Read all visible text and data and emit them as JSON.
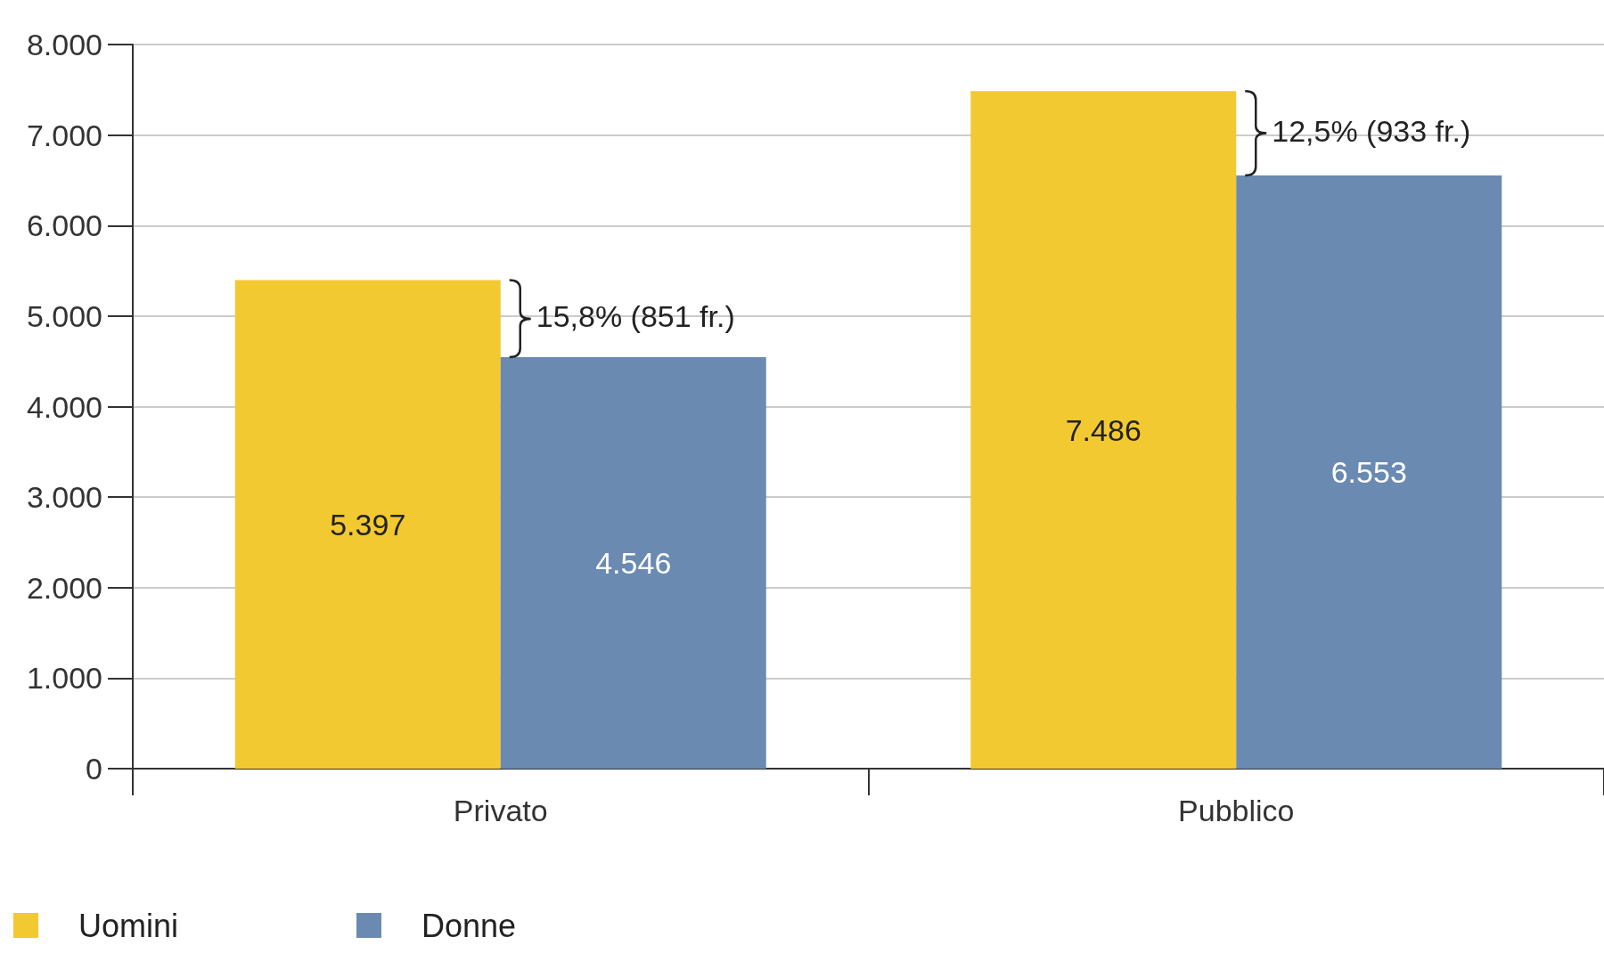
{
  "chart_data": {
    "type": "bar",
    "categories": [
      "Privato",
      "Pubblico"
    ],
    "series": [
      {
        "name": "Uomini",
        "color": "#f2c930",
        "values": [
          5397,
          7486
        ],
        "value_labels": [
          "5.397",
          "7.486"
        ]
      },
      {
        "name": "Donne",
        "color": "#6a8ab2",
        "values": [
          4546,
          6553
        ],
        "value_labels": [
          "4.546",
          "6.553"
        ]
      }
    ],
    "ylim": [
      0,
      8000
    ],
    "yticks": [
      {
        "value": 0,
        "label": "0"
      },
      {
        "value": 1000,
        "label": "1.000"
      },
      {
        "value": 2000,
        "label": "2.000"
      },
      {
        "value": 3000,
        "label": "3.000"
      },
      {
        "value": 4000,
        "label": "4.000"
      },
      {
        "value": 5000,
        "label": "5.000"
      },
      {
        "value": 6000,
        "label": "6.000"
      },
      {
        "value": 7000,
        "label": "7.000"
      },
      {
        "value": 8000,
        "label": "8.000"
      }
    ],
    "annotations": [
      {
        "text": "15,8% (851 fr.)",
        "x": "Privato",
        "y": 4970
      },
      {
        "text": "12,5% (933 fr.)",
        "x": "Pubblico",
        "y": 7020
      }
    ],
    "grid": "y",
    "legend": "bottom left"
  }
}
